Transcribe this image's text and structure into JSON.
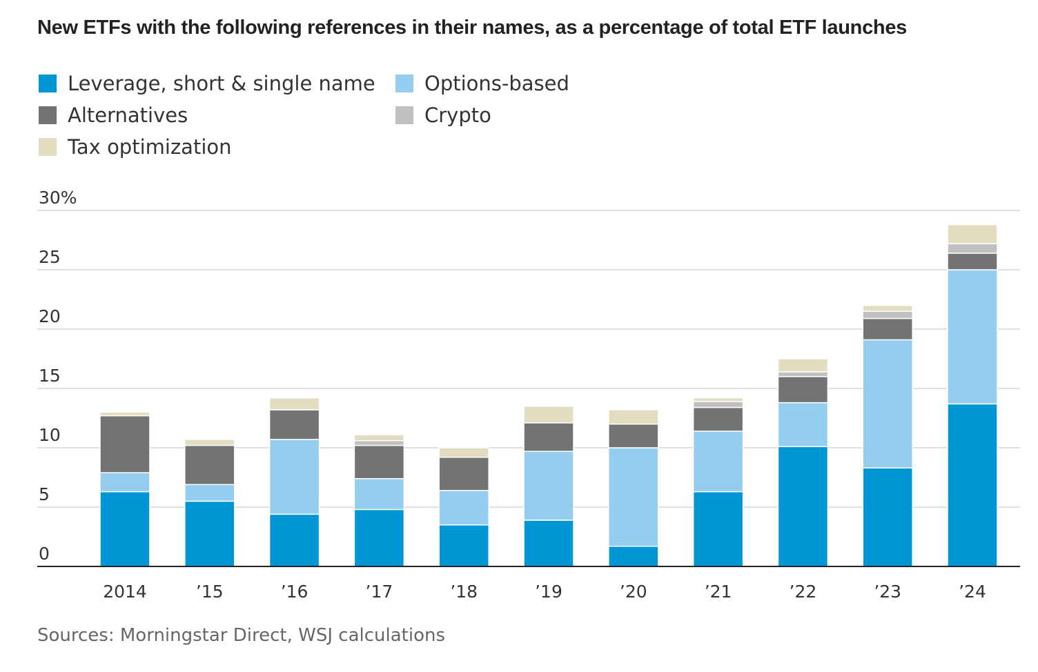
{
  "title": "New ETFs with the following references in their names, as a percentage of total ETF launches",
  "sources": "Sources: Morningstar Direct, WSJ calculations",
  "chart_data": {
    "type": "bar",
    "stacked": true,
    "title": "New ETFs with the following references in their names, as a percentage of total ETF launches",
    "xlabel": "",
    "ylabel": "",
    "ylim": [
      0,
      30
    ],
    "yticks": [
      0,
      5,
      10,
      15,
      20,
      25,
      30
    ],
    "ytick_labels": [
      "0",
      "5",
      "10",
      "15",
      "20",
      "25",
      "30%"
    ],
    "grid": true,
    "legend_position": "top-left",
    "categories": [
      "2014",
      "’15",
      "’16",
      "’17",
      "’18",
      "’19",
      "’20",
      "’21",
      "’22",
      "’23",
      "’24"
    ],
    "series": [
      {
        "name": "Leverage, short & single name",
        "color": "#0096d6",
        "values": [
          6.3,
          5.5,
          4.4,
          4.8,
          3.5,
          3.9,
          1.7,
          6.3,
          10.1,
          8.3,
          13.7
        ]
      },
      {
        "name": "Options-based",
        "color": "#94cdee",
        "values": [
          1.6,
          1.4,
          6.3,
          2.6,
          2.9,
          5.8,
          8.3,
          5.1,
          3.7,
          10.8,
          11.3
        ]
      },
      {
        "name": "Alternatives",
        "color": "#737373",
        "values": [
          4.8,
          3.3,
          2.5,
          2.8,
          2.8,
          2.4,
          2.0,
          2.0,
          2.2,
          1.8,
          1.4
        ]
      },
      {
        "name": "Crypto",
        "color": "#c0c0c0",
        "values": [
          0,
          0,
          0,
          0.4,
          0,
          0,
          0,
          0.5,
          0.4,
          0.6,
          0.8
        ]
      },
      {
        "name": "Tax optimization",
        "color": "#e2ddc0",
        "values": [
          0.3,
          0.5,
          1.0,
          0.5,
          0.8,
          1.4,
          1.2,
          0.3,
          1.1,
          0.5,
          1.6
        ]
      }
    ]
  }
}
